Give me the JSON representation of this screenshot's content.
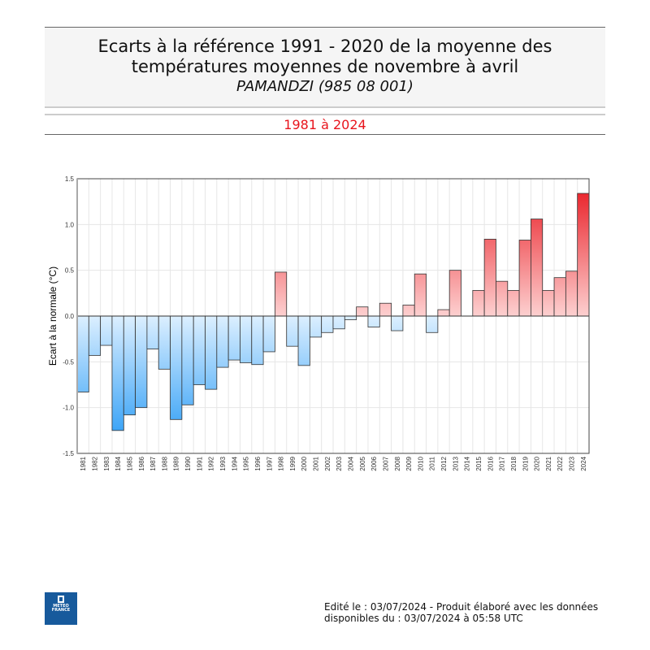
{
  "header": {
    "title_line1": "Ecarts à la référence 1991 - 2020 de la moyenne des",
    "title_line2": "températures moyennes de novembre à avril",
    "station": "PAMANDZI (985 08 001)",
    "period": "1981 à 2024"
  },
  "footer": {
    "line1": "Edité le : 03/07/2024 - Produit élaboré avec les données",
    "line2": "disponibles du : 03/07/2024 à 05:58 UTC",
    "logo_text": "METEO FRANCE"
  },
  "chart_data": {
    "type": "bar",
    "title": "Ecarts à la référence 1991 - 2020 de la moyenne des températures moyennes de novembre à avril",
    "ylabel": "Ecart à la normale (°C)",
    "xlabel": "",
    "ylim": [
      -1.5,
      1.5
    ],
    "yticks": [
      "-1.5",
      "-1.0",
      "-0.5",
      "0.0",
      "0.5",
      "1.0",
      "1.5"
    ],
    "grid": true,
    "colors": {
      "positive": "#e8141c",
      "positive_light": "#fdd0d0",
      "negative": "#1e96f5",
      "negative_light": "#dcefff"
    },
    "categories": [
      "1981",
      "1982",
      "1983",
      "1984",
      "1985",
      "1986",
      "1987",
      "1988",
      "1989",
      "1990",
      "1991",
      "1992",
      "1993",
      "1994",
      "1995",
      "1996",
      "1997",
      "1998",
      "1999",
      "2000",
      "2001",
      "2002",
      "2003",
      "2004",
      "2005",
      "2006",
      "2007",
      "2008",
      "2009",
      "2010",
      "2011",
      "2012",
      "2013",
      "2014",
      "2015",
      "2016",
      "2017",
      "2018",
      "2019",
      "2020",
      "2021",
      "2022",
      "2023",
      "2024"
    ],
    "values": [
      -0.83,
      -0.43,
      -0.32,
      -1.25,
      -1.08,
      -1.0,
      -0.36,
      -0.58,
      -1.13,
      -0.97,
      -0.75,
      -0.8,
      -0.56,
      -0.48,
      -0.51,
      -0.53,
      -0.39,
      0.48,
      -0.33,
      -0.54,
      -0.23,
      -0.18,
      -0.14,
      -0.04,
      0.1,
      -0.12,
      0.14,
      -0.16,
      0.12,
      0.46,
      -0.18,
      0.07,
      0.5,
      0.0,
      0.28,
      0.84,
      0.38,
      0.28,
      0.83,
      1.06,
      0.28,
      0.42,
      0.49,
      1.34
    ]
  }
}
